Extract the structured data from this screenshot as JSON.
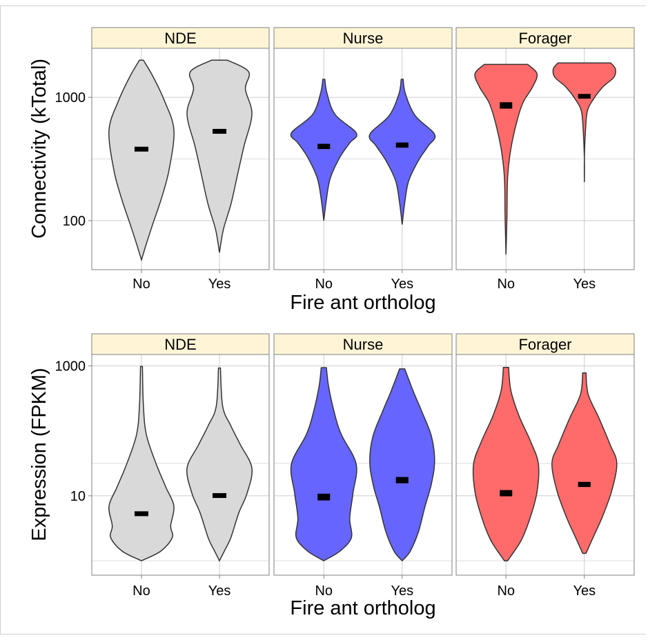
{
  "colors": {
    "NDE": "#d9d9d9",
    "Nurse": "#6666ff",
    "Forager": "#ff6b6b",
    "strip_fill": "#fff5d6",
    "grid": "#cccccc",
    "outline": "#333333"
  },
  "chart_data": [
    {
      "type": "violin",
      "ylabel": "Connectivity (kTotal)",
      "xlabel": "Fire ant ortholog",
      "y_scale": "log10",
      "ylim": [
        40,
        2500
      ],
      "y_ticks": [
        {
          "value": 100,
          "label": "100"
        },
        {
          "value": 1000,
          "label": "1000"
        }
      ],
      "categories": [
        "No",
        "Yes"
      ],
      "panels": [
        {
          "name": "NDE",
          "groups": [
            {
              "x": "No",
              "mean": 380,
              "se": 0,
              "min": 48,
              "max": 2000
            },
            {
              "x": "Yes",
              "mean": 530,
              "se": 0,
              "min": 55,
              "max": 2000
            }
          ]
        },
        {
          "name": "Nurse",
          "groups": [
            {
              "x": "No",
              "mean": 400,
              "se": 12,
              "min": 100,
              "max": 1400
            },
            {
              "x": "Yes",
              "mean": 410,
              "se": 12,
              "min": 93,
              "max": 1400
            }
          ]
        },
        {
          "name": "Forager",
          "groups": [
            {
              "x": "No",
              "mean": 860,
              "se": 35,
              "min": 53,
              "max": 1850
            },
            {
              "x": "Yes",
              "mean": 1020,
              "se": 25,
              "min": 205,
              "max": 1900
            }
          ]
        }
      ]
    },
    {
      "type": "violin",
      "ylabel": "Expression (FPKM)",
      "xlabel": "Fire ant ortholog",
      "y_scale": "log10",
      "ylim": [
        0.6,
        1500
      ],
      "y_ticks": [
        {
          "value": 10,
          "label": "10"
        },
        {
          "value": 1000,
          "label": "1000"
        }
      ],
      "categories": [
        "No",
        "Yes"
      ],
      "panels": [
        {
          "name": "NDE",
          "groups": [
            {
              "x": "No",
              "mean": 5.3,
              "se": 0,
              "min": 1.0,
              "max": 980
            },
            {
              "x": "Yes",
              "mean": 10.1,
              "se": 0,
              "min": 1.0,
              "max": 930
            }
          ]
        },
        {
          "name": "Nurse",
          "groups": [
            {
              "x": "No",
              "mean": 9.6,
              "se": 0.8,
              "min": 1.0,
              "max": 940
            },
            {
              "x": "Yes",
              "mean": 17.5,
              "se": 1.3,
              "min": 1.0,
              "max": 900
            }
          ]
        },
        {
          "name": "Forager",
          "groups": [
            {
              "x": "No",
              "mean": 11.0,
              "se": 0.8,
              "min": 1.0,
              "max": 950
            },
            {
              "x": "Yes",
              "mean": 15.0,
              "se": 0.8,
              "min": 1.3,
              "max": 780
            }
          ]
        }
      ]
    }
  ]
}
